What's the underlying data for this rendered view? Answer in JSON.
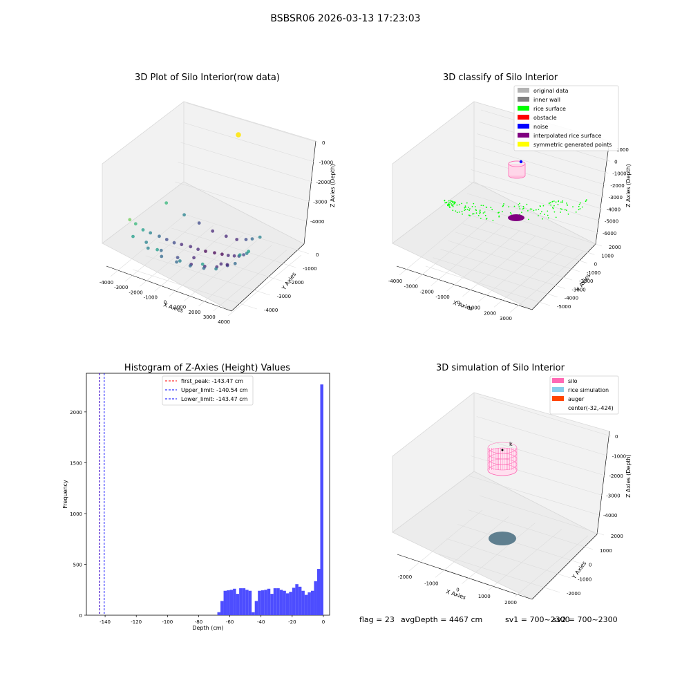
{
  "figure": {
    "suptitle": "BSBSR06 2026-03-13 17:23:03",
    "footer": {
      "flag": "flag = 23",
      "avg": "avgDepth = 4467 cm",
      "sv1": "sv1 = 700~2300",
      "sv2": "sv2 = 700~2300"
    }
  },
  "colors": {
    "original_data": "#b3b3b3",
    "inner_wall": "#808080",
    "rice_surface": "#00ff00",
    "obstacle": "#ff0000",
    "noise": "#0000ff",
    "interpolated_rice_surface": "#800080",
    "symmetric_generated_points": "#ffff00",
    "silo": "#ff69b4",
    "rice_simulation": "#87ceeb",
    "auger": "#ff4500",
    "hist_bar": "#4d4dff",
    "peak_line": "#ff0000",
    "limit_line": "#0000ff",
    "disk": "#5f7f8f"
  },
  "chart_data": [
    {
      "type": "scatter",
      "kind": "3d",
      "title": "3D Plot of Silo Interior(row data)",
      "xlabel": "X Axies",
      "ylabel": "Y Axies",
      "zlabel": "Z Axies (Depth)",
      "xticks": [
        "-4000",
        "-3000",
        "-2000",
        "-1000",
        "0",
        "1000",
        "2000",
        "3000",
        "4000"
      ],
      "yticks": [
        "0",
        "-1000",
        "-2000",
        "-3000",
        "-4000"
      ],
      "zticks": [
        "0",
        "-1000",
        "-2000",
        "-3000",
        "-4000"
      ],
      "colormap": "viridis",
      "series": [
        {
          "x": -3400,
          "y": -3800,
          "z": -1200
        },
        {
          "x": -3300,
          "y": -3500,
          "z": -1700
        },
        {
          "x": -3100,
          "y": -3200,
          "z": -2300
        },
        {
          "x": -2900,
          "y": -2900,
          "z": -2700
        },
        {
          "x": -2600,
          "y": -2600,
          "z": -3100
        },
        {
          "x": -2300,
          "y": -2400,
          "z": -3400
        },
        {
          "x": -2000,
          "y": -2200,
          "z": -3700
        },
        {
          "x": -1700,
          "y": -2000,
          "z": -3900
        },
        {
          "x": -1300,
          "y": -1800,
          "z": -4100
        },
        {
          "x": -900,
          "y": -1700,
          "z": -4250
        },
        {
          "x": -500,
          "y": -1600,
          "z": -4350
        },
        {
          "x": 0,
          "y": -1500,
          "z": -4400
        },
        {
          "x": 500,
          "y": -1500,
          "z": -4350
        },
        {
          "x": 1000,
          "y": -1600,
          "z": -4200
        },
        {
          "x": 1500,
          "y": -1700,
          "z": -4000
        },
        {
          "x": 2000,
          "y": -1900,
          "z": -3700
        },
        {
          "x": 2500,
          "y": -2100,
          "z": -3300
        },
        {
          "x": 3000,
          "y": -2400,
          "z": -2800
        },
        {
          "x": 3400,
          "y": -2700,
          "z": -2300
        },
        {
          "x": -2500,
          "y": -3600,
          "z": -2600
        },
        {
          "x": -1800,
          "y": -3300,
          "z": -3200
        },
        {
          "x": -1000,
          "y": -3000,
          "z": -3700
        },
        {
          "x": -200,
          "y": -2900,
          "z": -4000
        },
        {
          "x": 600,
          "y": -2800,
          "z": -4000
        },
        {
          "x": 1400,
          "y": -2800,
          "z": -3800
        },
        {
          "x": 2200,
          "y": -2900,
          "z": -3400
        },
        {
          "x": 2900,
          "y": -3100,
          "z": -2900
        },
        {
          "x": -2900,
          "y": -4100,
          "z": -1900
        },
        {
          "x": -2000,
          "y": -4000,
          "z": -2500
        },
        {
          "x": -1200,
          "y": -3900,
          "z": -2900
        },
        {
          "x": -300,
          "y": -3800,
          "z": -3100
        },
        {
          "x": 600,
          "y": -3800,
          "z": -3100
        },
        {
          "x": 1500,
          "y": -3800,
          "z": -3000
        },
        {
          "x": 2400,
          "y": -3900,
          "z": -2700
        },
        {
          "x": -1500,
          "y": -1000,
          "z": -3300
        },
        {
          "x": -800,
          "y": -800,
          "z": -3800
        },
        {
          "x": 0,
          "y": -700,
          "z": -4000
        },
        {
          "x": 800,
          "y": -800,
          "z": -3900
        },
        {
          "x": 1600,
          "y": -1000,
          "z": -3500
        },
        {
          "x": 2300,
          "y": -1300,
          "z": -3000
        },
        {
          "x": -2200,
          "y": -1300,
          "z": -2700
        },
        {
          "x": -3000,
          "y": -1700,
          "z": -1800
        },
        {
          "x": 3100,
          "y": -1600,
          "z": -2400
        },
        {
          "x": 3500,
          "y": -3400,
          "z": -1900
        },
        {
          "x": -1200,
          "y": -4200,
          "z": -2200
        },
        {
          "x": 400,
          "y": -4300,
          "z": -2400
        },
        {
          "x": 1800,
          "y": -4200,
          "z": -2300
        },
        {
          "x": 1200,
          "y": -2300,
          "z": -4100
        },
        {
          "x": -600,
          "y": -2300,
          "z": -4200
        },
        {
          "x": 1800,
          "y": -2500,
          "z": -3800
        }
      ],
      "outlier": {
        "x": -700,
        "y": 200,
        "z": 400
      }
    },
    {
      "type": "scatter",
      "kind": "3d",
      "title": "3D classify of Silo Interior",
      "xlabel": "X Axies",
      "ylabel": "Y Axies",
      "zlabel": "Z Axies (Depth)",
      "xticks": [
        "-4000",
        "-3000",
        "-2000",
        "-1000",
        "0",
        "1000",
        "2000",
        "3000"
      ],
      "yticks": [
        "2000",
        "1000",
        "0",
        "-1000",
        "-2000",
        "-3000",
        "-4000",
        "-5000"
      ],
      "zticks": [
        "1000",
        "0",
        "-1000",
        "-2000",
        "-3000",
        "-4000",
        "-5000",
        "-6000"
      ],
      "legend": [
        "original data",
        "inner wall",
        "rice surface",
        "obstacle",
        "noise",
        "interpolated rice surface",
        "symmetric generated points"
      ],
      "legend_loc": "upper right"
    },
    {
      "type": "bar",
      "kind": "histogram",
      "title": "Histogram of Z-Axies (Height) Values",
      "xlabel": "Depth (cm)",
      "ylabel": "Frequency",
      "xlim": [
        -152,
        4
      ],
      "ylim": [
        0,
        2380
      ],
      "xticks": [
        -140,
        -120,
        -100,
        -80,
        -60,
        -40,
        -20,
        0
      ],
      "yticks": [
        0,
        500,
        1000,
        1500,
        2000
      ],
      "bin_width": 2,
      "bin_starts": [
        -68,
        -66,
        -64,
        -62,
        -60,
        -58,
        -56,
        -54,
        -52,
        -50,
        -48,
        -46,
        -44,
        -42,
        -40,
        -38,
        -36,
        -34,
        -32,
        -30,
        -28,
        -26,
        -24,
        -22,
        -20,
        -18,
        -16,
        -14,
        -12,
        -10,
        -8,
        -6,
        -4,
        -2
      ],
      "values": [
        30,
        140,
        240,
        245,
        250,
        260,
        210,
        265,
        265,
        250,
        240,
        215,
        230,
        270,
        305,
        280,
        240,
        200,
        225,
        240,
        335,
        455,
        2270
      ],
      "values_note_offset": 11,
      "vlines": [
        {
          "x": -143.47,
          "style": "red",
          "label": "first_peak: -143.47 cm"
        },
        {
          "x": -140.54,
          "style": "blue",
          "label": "Upper_limit: -140.54 cm"
        },
        {
          "x": -143.47,
          "style": "blue",
          "label": "Lower_limit: -143.47 cm"
        }
      ]
    },
    {
      "type": "scatter",
      "kind": "3d",
      "title": "3D simulation of Silo Interior",
      "xlabel": "X Axies",
      "ylabel": "Y Axies",
      "zlabel": "Z Axies (Depth)",
      "xticks": [
        "-2000",
        "-1000",
        "0",
        "1000",
        "2000"
      ],
      "yticks": [
        "2000",
        "1000",
        "0",
        "-1000",
        "-2000"
      ],
      "zticks": [
        "0",
        "-1000",
        "-2000",
        "-3000",
        "-4000"
      ],
      "legend": [
        "silo",
        "rice simulation",
        "auger",
        "center(-32,-424)"
      ],
      "legend_loc": "upper right"
    }
  ]
}
